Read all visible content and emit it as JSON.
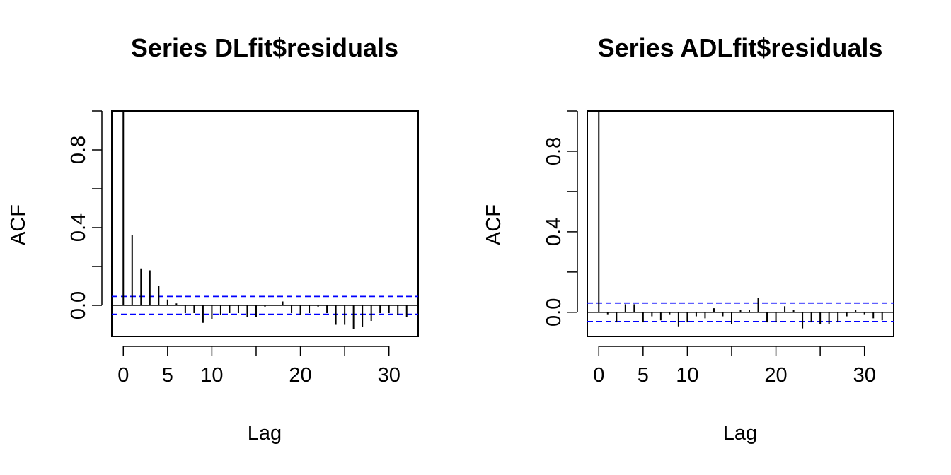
{
  "chart_data": [
    {
      "type": "bar",
      "title": "Series  DLfit$residuals",
      "xlabel": "Lag",
      "ylabel": "ACF",
      "xlim": [
        -1.3,
        33.3
      ],
      "ylim": [
        -0.16,
        1.0
      ],
      "xticks": [
        0,
        5,
        10,
        20,
        30
      ],
      "xticks_minor": [
        15,
        25
      ],
      "yticks_labeled": [
        0.0,
        0.4,
        0.8
      ],
      "yticks": [
        0.0,
        0.2,
        0.4,
        0.6,
        0.8,
        1.0
      ],
      "grid": false,
      "confidence_band": 0.046,
      "colors": {
        "bars": "#000000",
        "confidence": "#0000ff"
      },
      "lags": [
        0,
        1,
        2,
        3,
        4,
        5,
        6,
        7,
        8,
        9,
        10,
        11,
        12,
        13,
        14,
        15,
        16,
        17,
        18,
        19,
        20,
        21,
        22,
        23,
        24,
        25,
        26,
        27,
        28,
        29,
        30,
        31,
        32
      ],
      "values": [
        1.0,
        0.36,
        0.19,
        0.18,
        0.1,
        0.03,
        0.01,
        -0.04,
        -0.04,
        -0.09,
        -0.07,
        -0.05,
        -0.04,
        -0.04,
        -0.06,
        -0.06,
        -0.01,
        0.0,
        0.02,
        -0.04,
        -0.05,
        -0.04,
        -0.01,
        -0.04,
        -0.1,
        -0.1,
        -0.12,
        -0.11,
        -0.08,
        -0.04,
        -0.04,
        -0.05,
        -0.06
      ]
    },
    {
      "type": "bar",
      "title": "Series  ADLfit$residuals",
      "xlabel": "Lag",
      "ylabel": "ACF",
      "xlim": [
        -1.3,
        33.3
      ],
      "ylim": [
        -0.12,
        1.0
      ],
      "xticks": [
        0,
        5,
        10,
        20,
        30
      ],
      "xticks_minor": [
        15,
        25
      ],
      "yticks_labeled": [
        0.0,
        0.4,
        0.8
      ],
      "yticks": [
        0.0,
        0.2,
        0.4,
        0.6,
        0.8,
        1.0
      ],
      "grid": false,
      "confidence_band": 0.046,
      "colors": {
        "bars": "#000000",
        "confidence": "#0000ff"
      },
      "lags": [
        0,
        1,
        2,
        3,
        4,
        5,
        6,
        7,
        8,
        9,
        10,
        11,
        12,
        13,
        14,
        15,
        16,
        17,
        18,
        19,
        20,
        21,
        22,
        23,
        24,
        25,
        26,
        27,
        28,
        29,
        30,
        31,
        32
      ],
      "values": [
        1.0,
        -0.01,
        -0.05,
        0.04,
        0.04,
        -0.05,
        -0.02,
        -0.04,
        -0.01,
        -0.07,
        -0.05,
        -0.02,
        -0.03,
        0.02,
        -0.02,
        -0.06,
        0.01,
        0.01,
        0.07,
        -0.05,
        -0.05,
        0.03,
        0.01,
        -0.08,
        -0.05,
        -0.06,
        -0.06,
        -0.05,
        -0.02,
        0.01,
        -0.01,
        -0.03,
        -0.04
      ]
    }
  ]
}
